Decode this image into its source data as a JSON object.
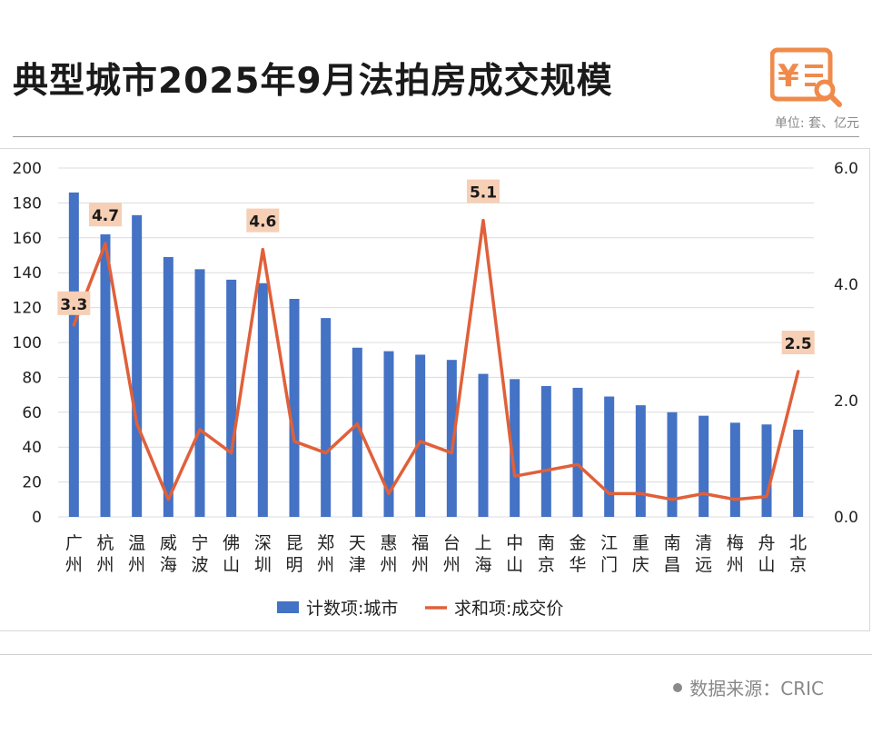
{
  "header": {
    "title": "典型城市2025年9月法拍房成交规模",
    "unit": "单位: 套、亿元"
  },
  "source": {
    "text": "数据来源：CRIC"
  },
  "colors": {
    "bar": "#4472c4",
    "line": "#e0603a",
    "label_bg": "#f6cfb5",
    "logo": "#f08a4b"
  },
  "logo_icon": "price-search-icon",
  "chart_data": {
    "type": "bar",
    "categories": [
      "广州",
      "杭州",
      "温州",
      "威海",
      "宁波",
      "佛山",
      "深圳",
      "昆明",
      "郑州",
      "天津",
      "惠州",
      "福州",
      "台州",
      "上海",
      "中山",
      "南京",
      "金华",
      "江门",
      "重庆",
      "南昌",
      "清远",
      "梅州",
      "舟山",
      "北京"
    ],
    "category_labels": [
      [
        "广",
        "州"
      ],
      [
        "杭",
        "州"
      ],
      [
        "温",
        "州"
      ],
      [
        "威",
        "海"
      ],
      [
        "宁",
        "波"
      ],
      [
        "佛",
        "山"
      ],
      [
        "深",
        "圳"
      ],
      [
        "昆",
        "明"
      ],
      [
        "郑",
        "州"
      ],
      [
        "天",
        "津"
      ],
      [
        "惠",
        "州"
      ],
      [
        "福",
        "州"
      ],
      [
        "台",
        "州"
      ],
      [
        "上",
        "海"
      ],
      [
        "中",
        "山"
      ],
      [
        "南",
        "京"
      ],
      [
        "金",
        "华"
      ],
      [
        "江",
        "门"
      ],
      [
        "重",
        "庆"
      ],
      [
        "南",
        "昌"
      ],
      [
        "清",
        "远"
      ],
      [
        "梅",
        "州"
      ],
      [
        "舟",
        "山"
      ],
      [
        "北",
        "京"
      ]
    ],
    "series": [
      {
        "name": "计数项:城市",
        "type": "bar",
        "axis": "left",
        "values": [
          186,
          162,
          173,
          149,
          142,
          136,
          134,
          125,
          114,
          97,
          95,
          93,
          90,
          82,
          79,
          75,
          74,
          69,
          64,
          60,
          58,
          54,
          53,
          50
        ]
      },
      {
        "name": "求和项:成交价",
        "type": "line",
        "axis": "right",
        "values": [
          3.3,
          4.7,
          1.6,
          0.3,
          1.5,
          1.1,
          4.6,
          1.3,
          1.1,
          1.6,
          0.4,
          1.3,
          1.1,
          5.1,
          0.7,
          0.8,
          0.9,
          0.4,
          0.4,
          0.3,
          0.4,
          0.3,
          0.35,
          2.5
        ]
      }
    ],
    "data_labels": [
      {
        "index": 0,
        "text": "3.3"
      },
      {
        "index": 1,
        "text": "4.7"
      },
      {
        "index": 6,
        "text": "4.6"
      },
      {
        "index": 13,
        "text": "5.1"
      },
      {
        "index": 23,
        "text": "2.5"
      }
    ],
    "y_left": {
      "ticks": [
        "0",
        "20",
        "40",
        "60",
        "80",
        "100",
        "120",
        "140",
        "160",
        "180",
        "200"
      ],
      "range": [
        0,
        200
      ]
    },
    "y_right": {
      "ticks": [
        "0.0",
        "2.0",
        "4.0",
        "6.0"
      ],
      "range": [
        0,
        6
      ]
    },
    "legend": {
      "placement": "bottom-center"
    },
    "grid": true
  }
}
